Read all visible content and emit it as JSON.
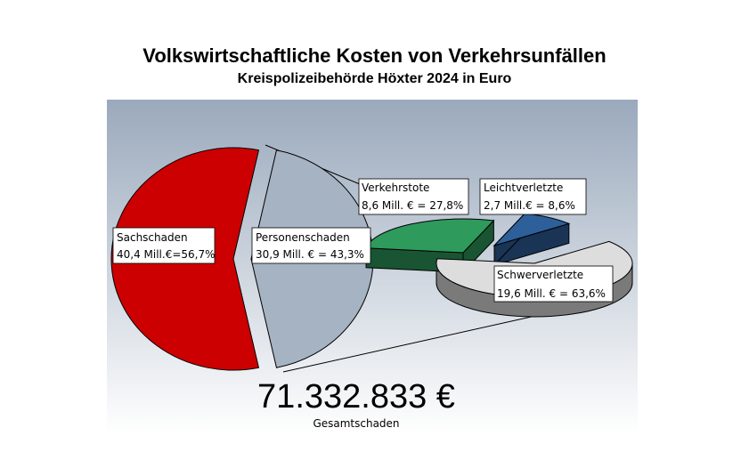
{
  "title": "Volkswirtschaftliche Kosten von Verkehrsunfällen",
  "subtitle": "Kreispolizeibehörde Höxter 2024 in Euro",
  "total": {
    "value": "71.332.833 €",
    "caption": "Gesamtschaden"
  },
  "colors": {
    "background_top": "#9aa9bc",
    "background_bottom": "#ffffff",
    "sachschaden": "#cc0000",
    "personenschaden": "#a5b3c2",
    "verkehrstote": "#2e9a5c",
    "leichtverletzte": "#2d5f9a",
    "schwerverletzte": "#dddddd"
  },
  "chart_data": [
    {
      "type": "pie",
      "unit": "Mill. €",
      "slices": [
        {
          "key": "sachschaden",
          "name": "Sachschaden",
          "value": 40.4,
          "percent": 56.7,
          "line1": "Sachschaden",
          "line2": "40,4 Mill.€=56,7%"
        },
        {
          "key": "personenschaden",
          "name": "Personenschaden",
          "value": 30.9,
          "percent": 43.3,
          "line1": "Personenschaden",
          "line2": "30,9 Mill. € = 43,3%"
        }
      ]
    },
    {
      "type": "pie",
      "unit": "Mill. €",
      "slices": [
        {
          "key": "verkehrstote",
          "name": "Verkehrstote",
          "value": 8.6,
          "percent": 27.8,
          "line1": "Verkehrstote",
          "line2": "8,6 Mill. € = 27,8%"
        },
        {
          "key": "leichtverletzte",
          "name": "Leichtverletzte",
          "value": 2.7,
          "percent": 8.6,
          "line1": "Leichtverletzte",
          "line2": "2,7 Mill.€ = 8,6%"
        },
        {
          "key": "schwerverletzte",
          "name": "Schwerverletzte",
          "value": 19.6,
          "percent": 63.6,
          "line1": "Schwerverletzte",
          "line2": "19,6 Mill. € = 63,6%"
        }
      ]
    }
  ]
}
